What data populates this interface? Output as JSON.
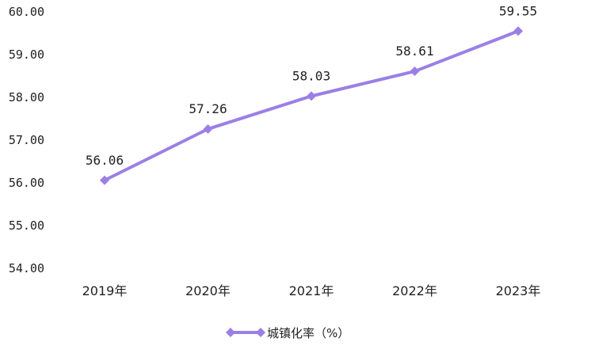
{
  "chart_data": {
    "type": "line",
    "categories": [
      "2019年",
      "2020年",
      "2021年",
      "2022年",
      "2023年"
    ],
    "series": [
      {
        "name": "城镇化率（%）",
        "values": [
          56.06,
          57.26,
          58.03,
          58.61,
          59.55
        ],
        "data_labels": [
          "56.06",
          "57.26",
          "58.03",
          "58.61",
          "59.55"
        ],
        "color": "#9b7fe6",
        "marker": "diamond"
      }
    ],
    "y_ticks": [
      "54.00",
      "55.00",
      "56.00",
      "57.00",
      "58.00",
      "59.00",
      "60.00"
    ],
    "ylim": [
      54,
      60
    ],
    "grid": false,
    "legend": {
      "position": "bottom",
      "label": "城镇化率（%）"
    }
  }
}
